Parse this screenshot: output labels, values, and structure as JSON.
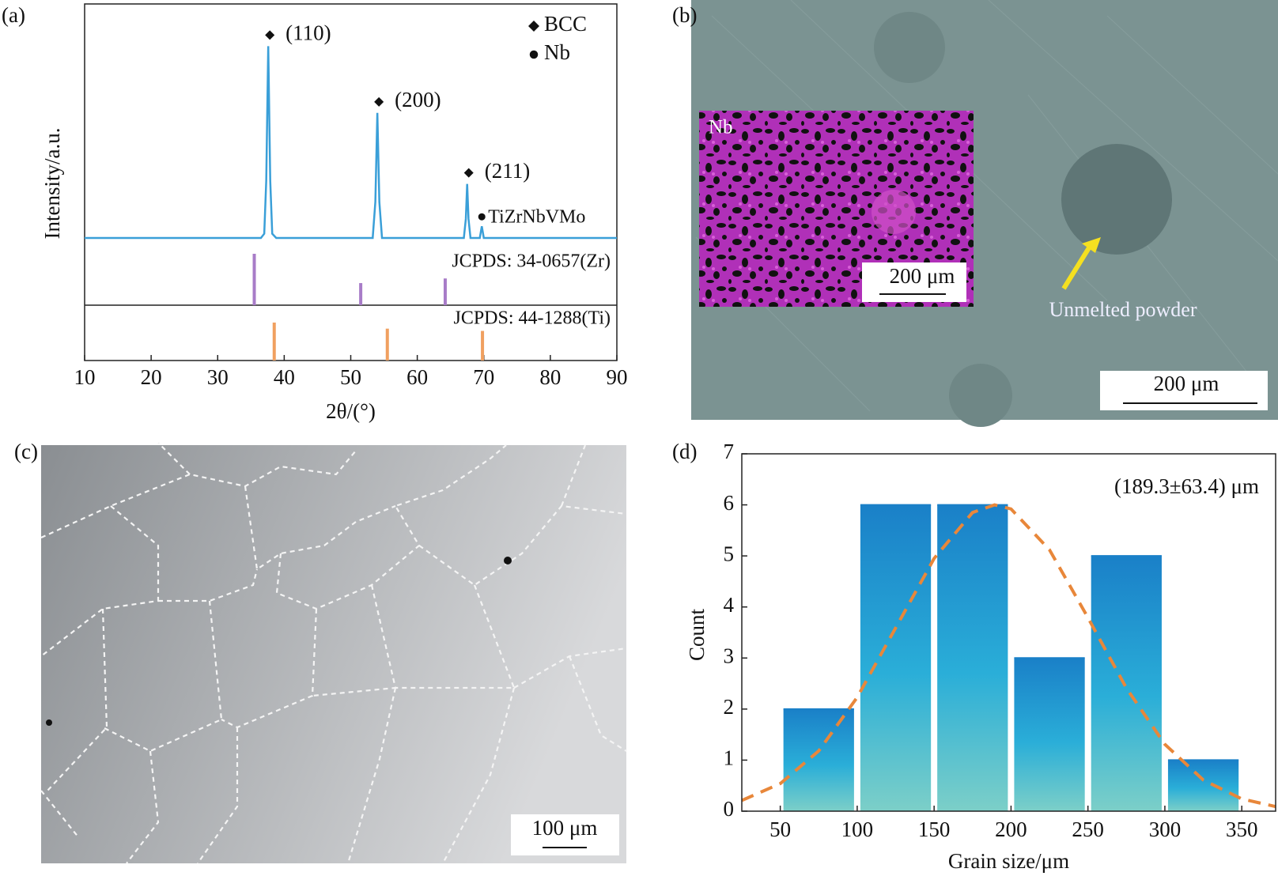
{
  "chart_data": [
    {
      "type": "line",
      "panel_label": "(a)",
      "xlabel": "2θ/(°)",
      "ylabel": "Intensity/a.u.",
      "xlim": [
        10,
        90
      ],
      "xticks": [
        10,
        20,
        30,
        40,
        50,
        60,
        70,
        80,
        90
      ],
      "ylim": [
        0,
        100
      ],
      "color": "#3a9fd8",
      "x": [
        10,
        36.5,
        37.0,
        37.3,
        37.6,
        37.9,
        38.2,
        38.8,
        53.3,
        53.7,
        54.0,
        54.3,
        54.7,
        67.0,
        67.3,
        67.5,
        67.7,
        68.0,
        69.4,
        69.7,
        70.0,
        90
      ],
      "values": [
        3,
        3,
        5,
        30,
        93.5,
        30,
        5,
        3,
        3,
        20,
        62,
        20,
        3,
        3,
        12,
        28.5,
        12,
        3,
        3,
        8.5,
        3,
        3
      ],
      "annotations": [
        {
          "x": 37.6,
          "text": "(110)",
          "marker": "diamond"
        },
        {
          "x": 54.0,
          "text": "(200)",
          "marker": "diamond"
        },
        {
          "x": 67.5,
          "text": "(211)",
          "marker": "diamond"
        },
        {
          "x": 69.7,
          "text": "TiZrNbVMo",
          "marker": "circle"
        }
      ],
      "legend": [
        {
          "marker": "diamond",
          "label": "BCC"
        },
        {
          "marker": "circle",
          "label": "Nb"
        }
      ],
      "references": [
        {
          "name": "JCPDS: 34-0657(Zr)",
          "color": "#a87cc8",
          "positions": [
            35.5,
            51.5,
            64.2
          ],
          "intensities": [
            100,
            43,
            52
          ]
        },
        {
          "name": "JCPDS: 44-1288(Ti)",
          "color": "#f0a060",
          "positions": [
            38.5,
            55.5,
            69.8
          ],
          "intensities": [
            100,
            84,
            78
          ]
        }
      ]
    },
    {
      "type": "histogram",
      "panel_label": "(d)",
      "xlabel": "Grain size/μm",
      "ylabel": "Count",
      "annotation": "(189.3±63.4) μm",
      "xlim": [
        25,
        372
      ],
      "xticks": [
        50,
        100,
        150,
        200,
        250,
        300,
        350
      ],
      "ylim": [
        0,
        7
      ],
      "yticks": [
        0,
        1,
        2,
        3,
        4,
        5,
        6,
        7
      ],
      "bins": [
        50,
        100,
        150,
        200,
        250,
        300,
        350
      ],
      "values": [
        2,
        6,
        6,
        3,
        5,
        1
      ],
      "color": "#1a80c8",
      "fit": {
        "color": "#e8873a",
        "x": [
          25,
          50,
          75,
          100,
          125,
          150,
          175,
          189.3,
          200,
          225,
          250,
          275,
          300,
          325,
          350,
          372
        ],
        "values": [
          0.21,
          0.54,
          1.18,
          2.23,
          3.59,
          4.95,
          5.85,
          6,
          5.92,
          5.12,
          3.79,
          2.41,
          1.31,
          0.61,
          0.24,
          0.09
        ]
      }
    }
  ],
  "micrographs": [
    {
      "label": "(b)",
      "inset_label": "Nb",
      "inset_scale": "200 μm",
      "annotation": "Unmelted powder",
      "scale": "200 μm"
    },
    {
      "label": "(c)",
      "scale": "100 μm"
    }
  ]
}
